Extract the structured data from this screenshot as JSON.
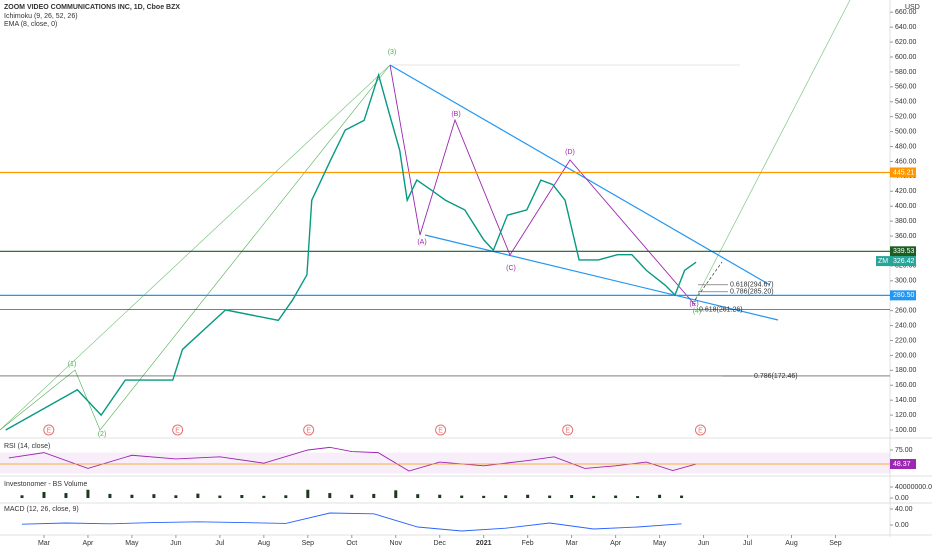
{
  "chart_data": [
    {
      "type": "line",
      "title": "ZOOM VIDEO COMMUNICATIONS INC, 1D, Cboe BZX",
      "indicators": [
        "Ichimoku (9, 26, 52, 26)",
        "EMA (8, close, 0)"
      ],
      "currency": "USD",
      "color": "#089981",
      "x": [
        0.13,
        1.76,
        2.3,
        2.85,
        3.93,
        4.15,
        5.13,
        6.33,
        6.65,
        6.98,
        7.09,
        7.52,
        7.85,
        8.28,
        8.61,
        8.83,
        9.09,
        9.26,
        9.48,
        9.8,
        10.13,
        10.57,
        11.0,
        11.22,
        11.54,
        11.98,
        12.3,
        12.57,
        12.85,
        13.17,
        13.61,
        14.04,
        14.37,
        14.7,
        15.13,
        15.35,
        15.57,
        15.83
      ],
      "values": [
        100,
        154,
        120,
        167,
        167,
        208,
        261,
        247,
        274,
        308,
        408,
        462,
        502,
        515,
        576,
        529,
        475,
        408,
        435,
        422,
        408,
        395,
        355,
        341,
        388,
        395,
        435,
        429,
        408,
        328,
        328,
        335,
        335,
        314,
        294,
        281,
        314,
        325
      ],
      "ylim": [
        89.3,
        676.4
      ],
      "yticks": [
        {
          "value": 100,
          "label": "100.00"
        },
        {
          "value": 120,
          "label": "120.00"
        },
        {
          "value": 140,
          "label": "140.00"
        },
        {
          "value": 160,
          "label": "160.00"
        },
        {
          "value": 180,
          "label": "180.00"
        },
        {
          "value": 200,
          "label": "200.00"
        },
        {
          "value": 220,
          "label": "220.00"
        },
        {
          "value": 240,
          "label": "240.00"
        },
        {
          "value": 260,
          "label": "260.00"
        },
        {
          "value": 280,
          "label": "280.00"
        },
        {
          "value": 300,
          "label": "300.00"
        },
        {
          "value": 320,
          "label": "320.00"
        },
        {
          "value": 340,
          "label": "340.00"
        },
        {
          "value": 360,
          "label": "360.00"
        },
        {
          "value": 380,
          "label": "380.00"
        },
        {
          "value": 400,
          "label": "400.00"
        },
        {
          "value": 420,
          "label": "420.00"
        },
        {
          "value": 440,
          "label": "440.00"
        },
        {
          "value": 460,
          "label": "460.00"
        },
        {
          "value": 480,
          "label": "480.00"
        },
        {
          "value": 500,
          "label": "500.00"
        },
        {
          "value": 520,
          "label": "520.00"
        },
        {
          "value": 540,
          "label": "540.00"
        },
        {
          "value": 560,
          "label": "560.00"
        },
        {
          "value": 580,
          "label": "580.00"
        },
        {
          "value": 600,
          "label": "600.00"
        },
        {
          "value": 620,
          "label": "620.00"
        },
        {
          "value": 640,
          "label": "640.00"
        },
        {
          "value": 660,
          "label": "660.00"
        }
      ],
      "xlim": [
        0,
        20.24
      ],
      "xticks": [
        {
          "value": 1,
          "label": "Mar"
        },
        {
          "value": 2,
          "label": "Apr"
        },
        {
          "value": 3,
          "label": "May"
        },
        {
          "value": 4,
          "label": "Jun"
        },
        {
          "value": 5,
          "label": "Jul"
        },
        {
          "value": 6,
          "label": "Aug"
        },
        {
          "value": 7,
          "label": "Sep"
        },
        {
          "value": 8,
          "label": "Oct"
        },
        {
          "value": 9,
          "label": "Nov"
        },
        {
          "value": 10,
          "label": "Dec"
        },
        {
          "value": 11,
          "label": "2021"
        },
        {
          "value": 12,
          "label": "Feb"
        },
        {
          "value": 13,
          "label": "Mar"
        },
        {
          "value": 14,
          "label": "Apr"
        },
        {
          "value": 15,
          "label": "May"
        },
        {
          "value": 16,
          "label": "Jun"
        },
        {
          "value": 17,
          "label": "Jul"
        },
        {
          "value": 18,
          "label": "Aug"
        },
        {
          "value": 19,
          "label": "Sep"
        }
      ],
      "levels": [
        {
          "value": 445.21,
          "label": "445.21",
          "color": "#ff9800"
        },
        {
          "value": 339.53,
          "label": "339.53",
          "color": "#1b5e20"
        },
        {
          "value": 280.5,
          "label": "280.50",
          "color": "#2196f3"
        },
        {
          "value": 261.26,
          "color": "#333333"
        },
        {
          "value": 172.46,
          "color": "#333333"
        }
      ],
      "current": {
        "symbol": "ZM",
        "value": 326.42,
        "label": "326.42",
        "color": "#26a69a"
      },
      "fib_labels": [
        {
          "text": "0.618(294.67)",
          "value": 294.67
        },
        {
          "text": "0.786(285.20)",
          "value": 285.2
        },
        {
          "text": "0.618(261.26)",
          "value": 261.26
        },
        {
          "text": "0.786(172.46)",
          "value": 172.46
        }
      ],
      "waves": [
        "(1)",
        "(2)",
        "(3)",
        "(A)",
        "(B)",
        "(C)",
        "(D)",
        "(E)",
        "(4)"
      ],
      "events": {
        "label": "E",
        "x": [
          1.11,
          4.04,
          7.02,
          10.02,
          12.91,
          15.93
        ]
      }
    },
    {
      "type": "line",
      "title": "RSI (14, close)",
      "color": "#9c27b0",
      "x": [
        0.2,
        1,
        2,
        3,
        4,
        5,
        6,
        7,
        7.5,
        8,
        8.6,
        9.3,
        10,
        11,
        12,
        12.6,
        13.3,
        14,
        14.7,
        15.3,
        15.83
      ],
      "values": [
        60,
        70,
        40,
        65,
        58,
        62,
        50,
        75,
        80,
        72,
        70,
        35,
        52,
        45,
        55,
        62,
        40,
        45,
        52,
        36,
        48.37
      ],
      "ylim": [
        25.6,
        94
      ],
      "yticks": [
        {
          "value": 75,
          "label": "75.00"
        }
      ],
      "current": {
        "value": 48.37,
        "label": "48.37"
      }
    },
    {
      "type": "bar",
      "title": "Investonomer - BS Volume",
      "color": "#1b3a1b",
      "x": [
        0.5,
        1,
        1.5,
        2,
        2.5,
        3,
        3.5,
        4,
        4.5,
        5,
        5.5,
        6,
        6.5,
        7,
        7.5,
        8,
        8.5,
        9,
        9.5,
        10,
        10.5,
        11,
        11.5,
        12,
        12.5,
        13,
        13.5,
        14,
        14.5,
        15,
        15.5
      ],
      "values": [
        10000000,
        22000000,
        18000000,
        30000000,
        15000000,
        12000000,
        14000000,
        10000000,
        16000000,
        9000000,
        11000000,
        8000000,
        10000000,
        30000000,
        18000000,
        12000000,
        15000000,
        28000000,
        14000000,
        12000000,
        9000000,
        8000000,
        10000000,
        12000000,
        9000000,
        11000000,
        8000000,
        9000000,
        7000000,
        12000000,
        9000000
      ],
      "ylim": [
        -18000000,
        72700000
      ],
      "yticks": [
        {
          "value": 40000000,
          "label": "40000000.00"
        },
        {
          "value": 0,
          "label": "0.00"
        }
      ]
    },
    {
      "type": "line",
      "title": "MACD (12, 26, close, 9)",
      "color": "#2962ff",
      "x": [
        0.5,
        1.5,
        2.5,
        3.5,
        4.5,
        5.5,
        6.5,
        7.5,
        8.5,
        9.5,
        10.5,
        11.5,
        12.5,
        13.5,
        14.5,
        15.5
      ],
      "values": [
        2,
        5,
        3,
        6,
        8,
        6,
        4,
        30,
        28,
        -5,
        -15,
        -8,
        5,
        -10,
        -5,
        3
      ],
      "ylim": [
        -25,
        55
      ],
      "yticks": [
        {
          "value": 40,
          "label": "40.00"
        },
        {
          "value": 0,
          "label": "0.00"
        }
      ]
    }
  ]
}
